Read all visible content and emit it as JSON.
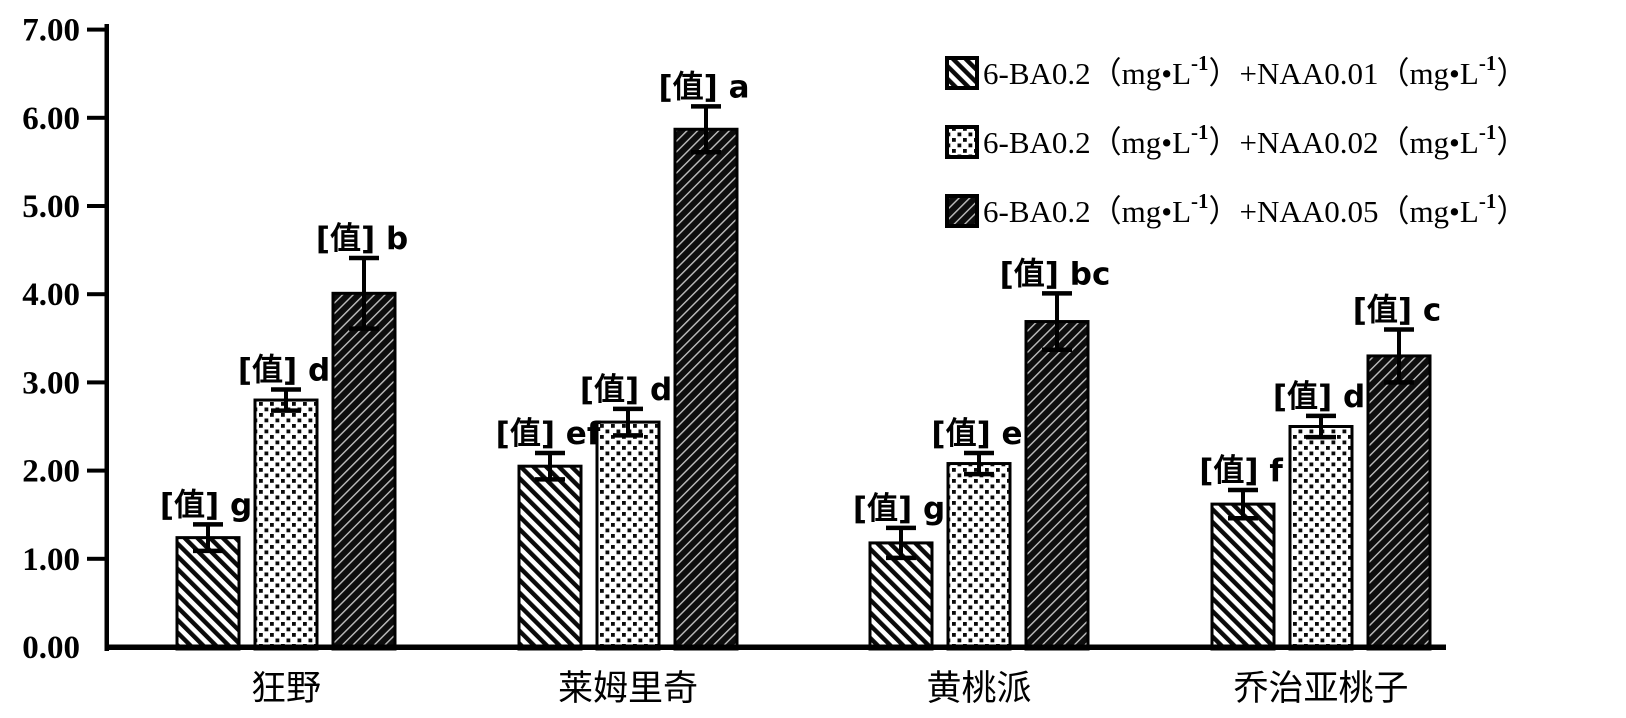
{
  "colors": {
    "ink": "#000000",
    "paper": "#ffffff"
  },
  "chart_data": {
    "type": "bar",
    "title": "",
    "xlabel": "",
    "ylabel": "",
    "grid": false,
    "legend_position": "top-right",
    "data_label_placeholder": "[值]",
    "categories": [
      "狂野",
      "莱姆里奇",
      "黄桃派",
      "乔治亚桃子"
    ],
    "y_axis": {
      "min": 0,
      "max": 7,
      "ticks": [
        "0.00",
        "1.00",
        "2.00",
        "3.00",
        "4.00",
        "5.00",
        "6.00",
        "7.00"
      ]
    },
    "series": [
      {
        "pattern": "diagonal-hatch",
        "legend_segments": [
          {
            "t": "6-BA0.2（mg•L"
          },
          {
            "t": "-1",
            "sup": true
          },
          {
            "t": "）+NAA0.01（mg•L"
          },
          {
            "t": "-1",
            "sup": true
          },
          {
            "t": "）"
          }
        ],
        "values": [
          1.24,
          2.05,
          1.18,
          1.62
        ],
        "errors": [
          0.15,
          0.15,
          0.17,
          0.16
        ],
        "sig_letters": [
          "g",
          "ef",
          "g",
          "f"
        ]
      },
      {
        "pattern": "dots",
        "legend_segments": [
          {
            "t": "6-BA0.2（mg•L"
          },
          {
            "t": "-1",
            "sup": true
          },
          {
            "t": "）+NAA0.02（mg•L"
          },
          {
            "t": "-1",
            "sup": true
          },
          {
            "t": "）"
          }
        ],
        "values": [
          2.8,
          2.55,
          2.08,
          2.5
        ],
        "errors": [
          0.12,
          0.15,
          0.12,
          0.12
        ],
        "sig_letters": [
          "d",
          "d",
          "e",
          "d"
        ]
      },
      {
        "pattern": "dark-back-diagonal",
        "legend_segments": [
          {
            "t": "6-BA0.2（mg•L"
          },
          {
            "t": "-1",
            "sup": true
          },
          {
            "t": "）+NAA0.05（mg•L"
          },
          {
            "t": "-1",
            "sup": true
          },
          {
            "t": "）"
          }
        ],
        "values": [
          4.01,
          5.87,
          3.69,
          3.3
        ],
        "errors": [
          0.4,
          0.26,
          0.32,
          0.3
        ],
        "sig_letters": [
          "b",
          "a",
          "bc",
          "c"
        ]
      }
    ]
  }
}
